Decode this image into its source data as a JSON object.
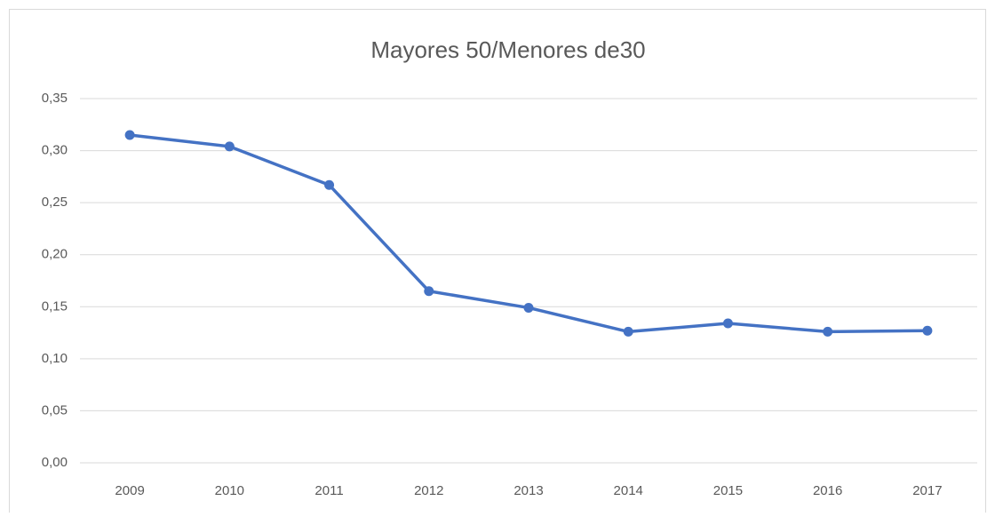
{
  "chart_data": {
    "type": "line",
    "title": "Mayores 50/Menores de30",
    "categories": [
      "2009",
      "2010",
      "2011",
      "2012",
      "2013",
      "2014",
      "2015",
      "2016",
      "2017"
    ],
    "series": [
      {
        "color": "#4472c4",
        "values": [
          0.315,
          0.304,
          0.267,
          0.165,
          0.149,
          0.126,
          0.134,
          0.126,
          0.127
        ]
      }
    ],
    "ylim": [
      0,
      0.35
    ],
    "yticks": [
      {
        "value": 0,
        "label": "0,00"
      },
      {
        "value": 0.05,
        "label": "0,05"
      },
      {
        "value": 0.1,
        "label": "0,10"
      },
      {
        "value": 0.15,
        "label": "0,15"
      },
      {
        "value": 0.2,
        "label": "0,20"
      },
      {
        "value": 0.25,
        "label": "0,25"
      },
      {
        "value": 0.3,
        "label": "0,30"
      },
      {
        "value": 0.35,
        "label": "0,35"
      }
    ],
    "grid": true
  }
}
